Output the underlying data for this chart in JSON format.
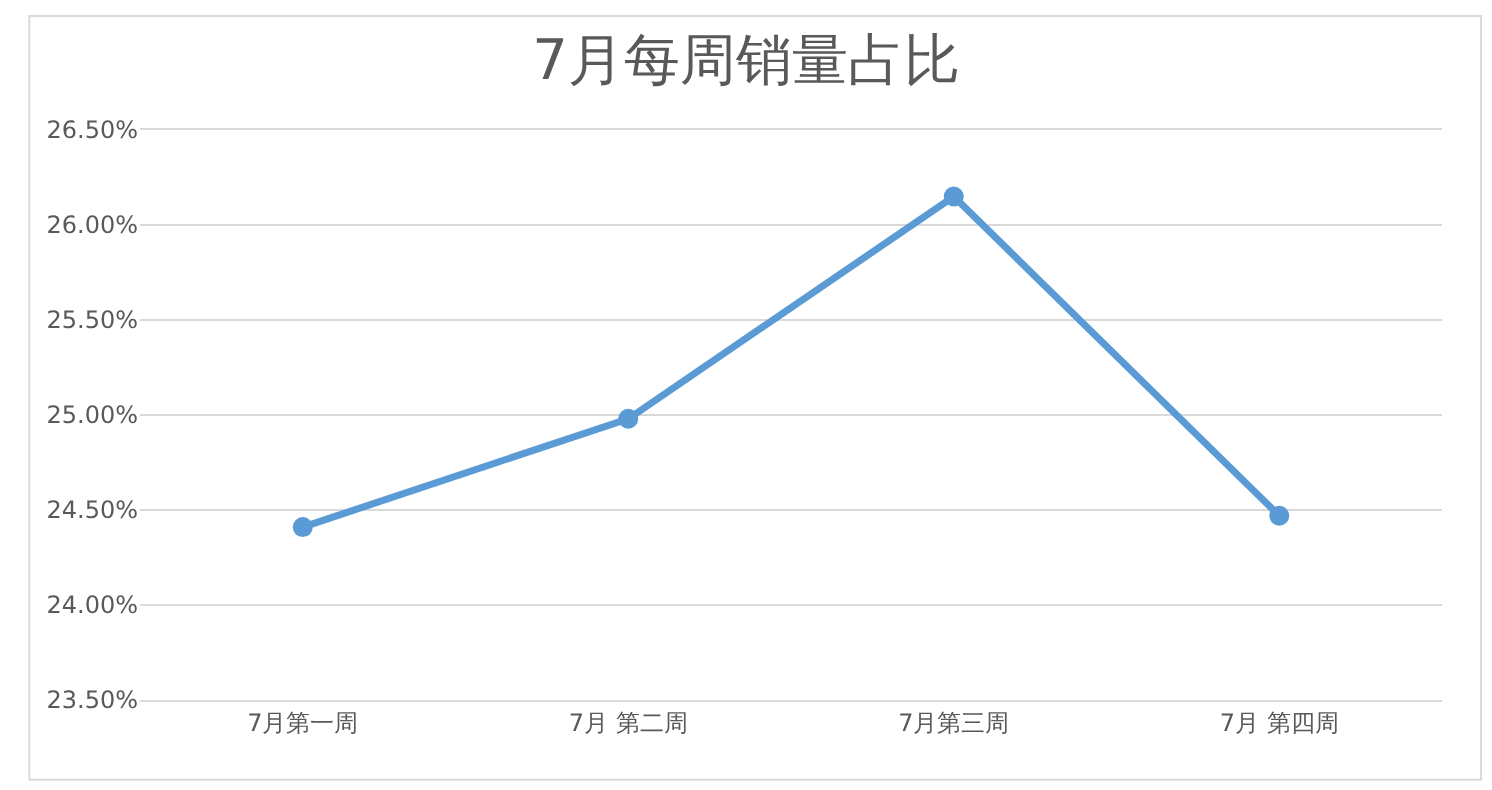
{
  "chart_data": {
    "type": "line",
    "title": "7月每周销量占比",
    "categories": [
      "7月第一周",
      "7月 第二周",
      "7月第三周",
      "7月 第四周"
    ],
    "series": [
      {
        "color": "#5b9bd5",
        "values": [
          24.41,
          24.98,
          26.15,
          24.47
        ]
      }
    ],
    "ylim": [
      23.5,
      26.5
    ],
    "yticks": [
      {
        "value": 23.5,
        "label": "23.50%"
      },
      {
        "value": 24.0,
        "label": "24.00%"
      },
      {
        "value": 24.5,
        "label": "24.50%"
      },
      {
        "value": 25.0,
        "label": "25.00%"
      },
      {
        "value": 25.5,
        "label": "25.50%"
      },
      {
        "value": 26.0,
        "label": "26.00%"
      },
      {
        "value": 26.5,
        "label": "26.50%"
      }
    ],
    "grid": "y",
    "marker": "circle",
    "line_style": "solid"
  }
}
